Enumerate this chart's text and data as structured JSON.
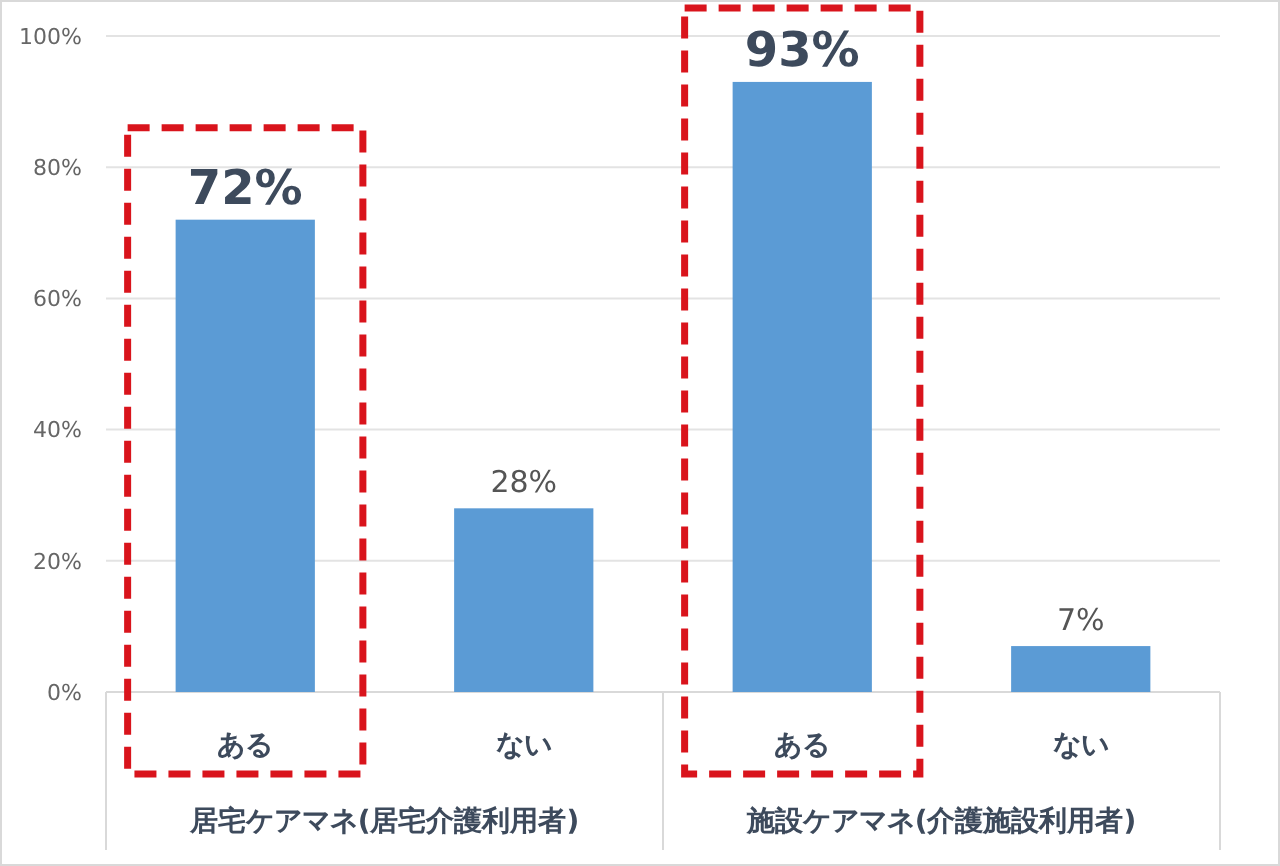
{
  "chart_data": {
    "type": "bar",
    "categories": [
      "ある",
      "ない",
      "ある",
      "ない"
    ],
    "values": [
      72,
      28,
      93,
      7
    ],
    "color": "#5b9bd5",
    "value_labels": [
      "72%",
      "28%",
      "93%",
      "7%"
    ],
    "ylim": [
      0,
      100
    ],
    "yticks": [
      {
        "value": 0,
        "label": "0%"
      },
      {
        "value": 20,
        "label": "20%"
      },
      {
        "value": 40,
        "label": "40%"
      },
      {
        "value": 60,
        "label": "60%"
      },
      {
        "value": 80,
        "label": "80%"
      },
      {
        "value": 100,
        "label": "100%"
      }
    ],
    "grid": "y",
    "annotations": [
      "居宅ケアマネ(居宅介護利用者)",
      "施設ケアマネ(介護施設利用者)"
    ]
  }
}
